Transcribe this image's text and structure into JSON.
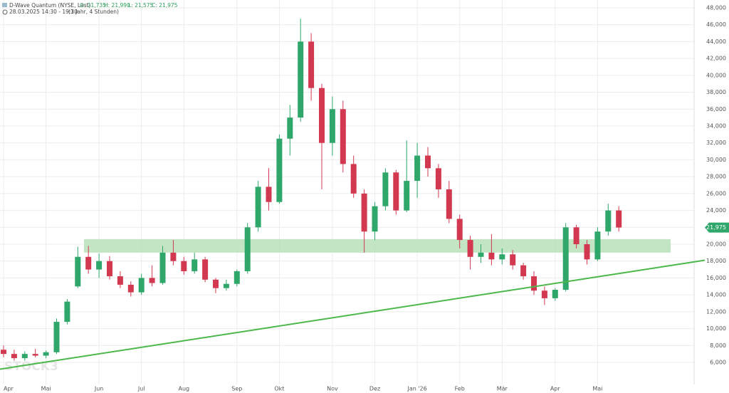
{
  "chart_data": {
    "type": "candlestick",
    "header": {
      "title": "D-Wave Quantum (NYSE, Last)",
      "open": "O: 21,735",
      "high": "H: 21,990",
      "low": "L: 21,575",
      "close": "C: 21,975",
      "period": "28.03.2025 14:30 - 19:30",
      "interval": "(1 Jahr, 4 Stunden)"
    },
    "watermark": "STOCK3",
    "categories": [
      "Apr",
      null,
      null,
      null,
      "Mai",
      null,
      null,
      null,
      null,
      "Jun",
      null,
      null,
      null,
      "Jul",
      null,
      null,
      null,
      "Aug",
      null,
      null,
      null,
      null,
      "Sep",
      null,
      null,
      null,
      "Okt",
      null,
      null,
      null,
      null,
      "Nov",
      null,
      null,
      null,
      "Dez",
      null,
      null,
      null,
      "Jan '26",
      null,
      null,
      null,
      "Feb",
      null,
      null,
      null,
      "Mär",
      null,
      null,
      null,
      null,
      "Apr",
      null,
      null,
      null,
      "Mai",
      null,
      null
    ],
    "open": [
      7.5,
      7.0,
      6.5,
      7.0,
      6.8,
      7.2,
      10.8,
      15.0,
      18.5,
      17.0,
      18.0,
      16.2,
      15.2,
      14.3,
      16.0,
      15.4,
      19.0,
      18.0,
      16.8,
      18.2,
      15.8,
      14.8,
      15.3,
      16.8,
      22.0,
      26.8,
      25.0,
      32.5,
      35.0,
      44.0,
      38.5,
      32.0,
      36.0,
      29.5,
      26.0,
      21.5,
      24.5,
      28.5,
      24.0,
      27.5,
      30.5,
      29.0,
      26.5,
      23.0,
      20.5,
      18.5,
      19.0,
      18.2,
      18.8,
      17.5,
      16.2,
      14.5,
      13.6,
      14.6,
      22.0,
      20.0,
      18.2,
      21.5,
      24.0
    ],
    "high": [
      8.0,
      7.5,
      7.3,
      7.6,
      7.4,
      11.2,
      13.5,
      19.7,
      19.8,
      18.9,
      18.6,
      16.8,
      15.6,
      16.5,
      17.5,
      19.8,
      20.5,
      18.5,
      19.0,
      18.5,
      16.0,
      15.8,
      17.0,
      22.5,
      27.5,
      29.0,
      33.0,
      36.5,
      46.7,
      45.0,
      39.0,
      37.5,
      37.0,
      30.5,
      26.5,
      25.0,
      29.0,
      28.8,
      32.3,
      32.0,
      31.5,
      29.5,
      27.5,
      23.5,
      21.0,
      20.0,
      21.2,
      19.5,
      19.3,
      17.8,
      16.8,
      15.0,
      14.8,
      22.5,
      22.3,
      20.5,
      22.0,
      24.8,
      24.5
    ],
    "low": [
      6.6,
      6.2,
      6.2,
      6.6,
      6.5,
      7.0,
      10.5,
      14.8,
      16.5,
      16.0,
      15.8,
      14.8,
      13.8,
      14.0,
      15.0,
      15.2,
      17.5,
      16.4,
      16.5,
      15.5,
      14.2,
      14.5,
      15.0,
      16.5,
      21.5,
      24.0,
      24.8,
      30.5,
      34.5,
      37.0,
      26.5,
      30.5,
      28.5,
      25.5,
      19.0,
      20.5,
      24.0,
      23.5,
      23.8,
      25.5,
      28.0,
      25.5,
      22.5,
      19.5,
      17.0,
      17.8,
      17.5,
      17.6,
      17.0,
      15.8,
      14.0,
      12.8,
      13.3,
      14.4,
      19.5,
      17.6,
      18.0,
      21.0,
      21.5
    ],
    "close": [
      7.0,
      6.5,
      7.0,
      6.8,
      7.2,
      10.8,
      13.2,
      18.5,
      17.0,
      18.0,
      16.2,
      15.2,
      14.3,
      16.0,
      15.4,
      19.0,
      18.0,
      16.8,
      18.2,
      15.8,
      14.8,
      15.3,
      16.8,
      22.0,
      26.8,
      25.0,
      32.5,
      35.0,
      44.0,
      38.5,
      32.0,
      36.0,
      29.5,
      26.0,
      21.5,
      24.5,
      28.5,
      24.0,
      27.5,
      30.5,
      29.0,
      26.5,
      23.0,
      20.5,
      18.5,
      19.0,
      18.2,
      18.8,
      17.5,
      16.2,
      14.5,
      13.6,
      14.6,
      22.0,
      20.0,
      18.2,
      21.5,
      24.0,
      21.975
    ],
    "up_color": "#2fa66a",
    "down_color": "#d2384f",
    "zone": {
      "low": 19.0,
      "high": 20.6,
      "color": "#b9e0b9"
    },
    "trendline": {
      "start": 5.2,
      "end": 18.1,
      "color": "#4cb84c"
    },
    "last_price": {
      "value": 21.975,
      "label": "21,975"
    },
    "ylim": [
      6,
      48
    ],
    "yticks": [
      {
        "value": 6,
        "label": "6,000"
      },
      {
        "value": 8,
        "label": "8,000"
      },
      {
        "value": 10,
        "label": "10,000"
      },
      {
        "value": 12,
        "label": "12,000"
      },
      {
        "value": 14,
        "label": "14,000"
      },
      {
        "value": 16,
        "label": "16,000"
      },
      {
        "value": 18,
        "label": "18,000"
      },
      {
        "value": 20,
        "label": "20,000"
      },
      {
        "value": 22,
        "label": "22,000"
      },
      {
        "value": 24,
        "label": "24,000"
      },
      {
        "value": 26,
        "label": "26,000"
      },
      {
        "value": 28,
        "label": "28,000"
      },
      {
        "value": 30,
        "label": "30,000"
      },
      {
        "value": 32,
        "label": "32,000"
      },
      {
        "value": 34,
        "label": "34,000"
      },
      {
        "value": 36,
        "label": "36,000"
      },
      {
        "value": 38,
        "label": "38,000"
      },
      {
        "value": 40,
        "label": "40,000"
      },
      {
        "value": 42,
        "label": "42,000"
      },
      {
        "value": 44,
        "label": "44,000"
      },
      {
        "value": 46,
        "label": "46,000"
      },
      {
        "value": 48,
        "label": "48,000"
      }
    ],
    "grid": true
  }
}
